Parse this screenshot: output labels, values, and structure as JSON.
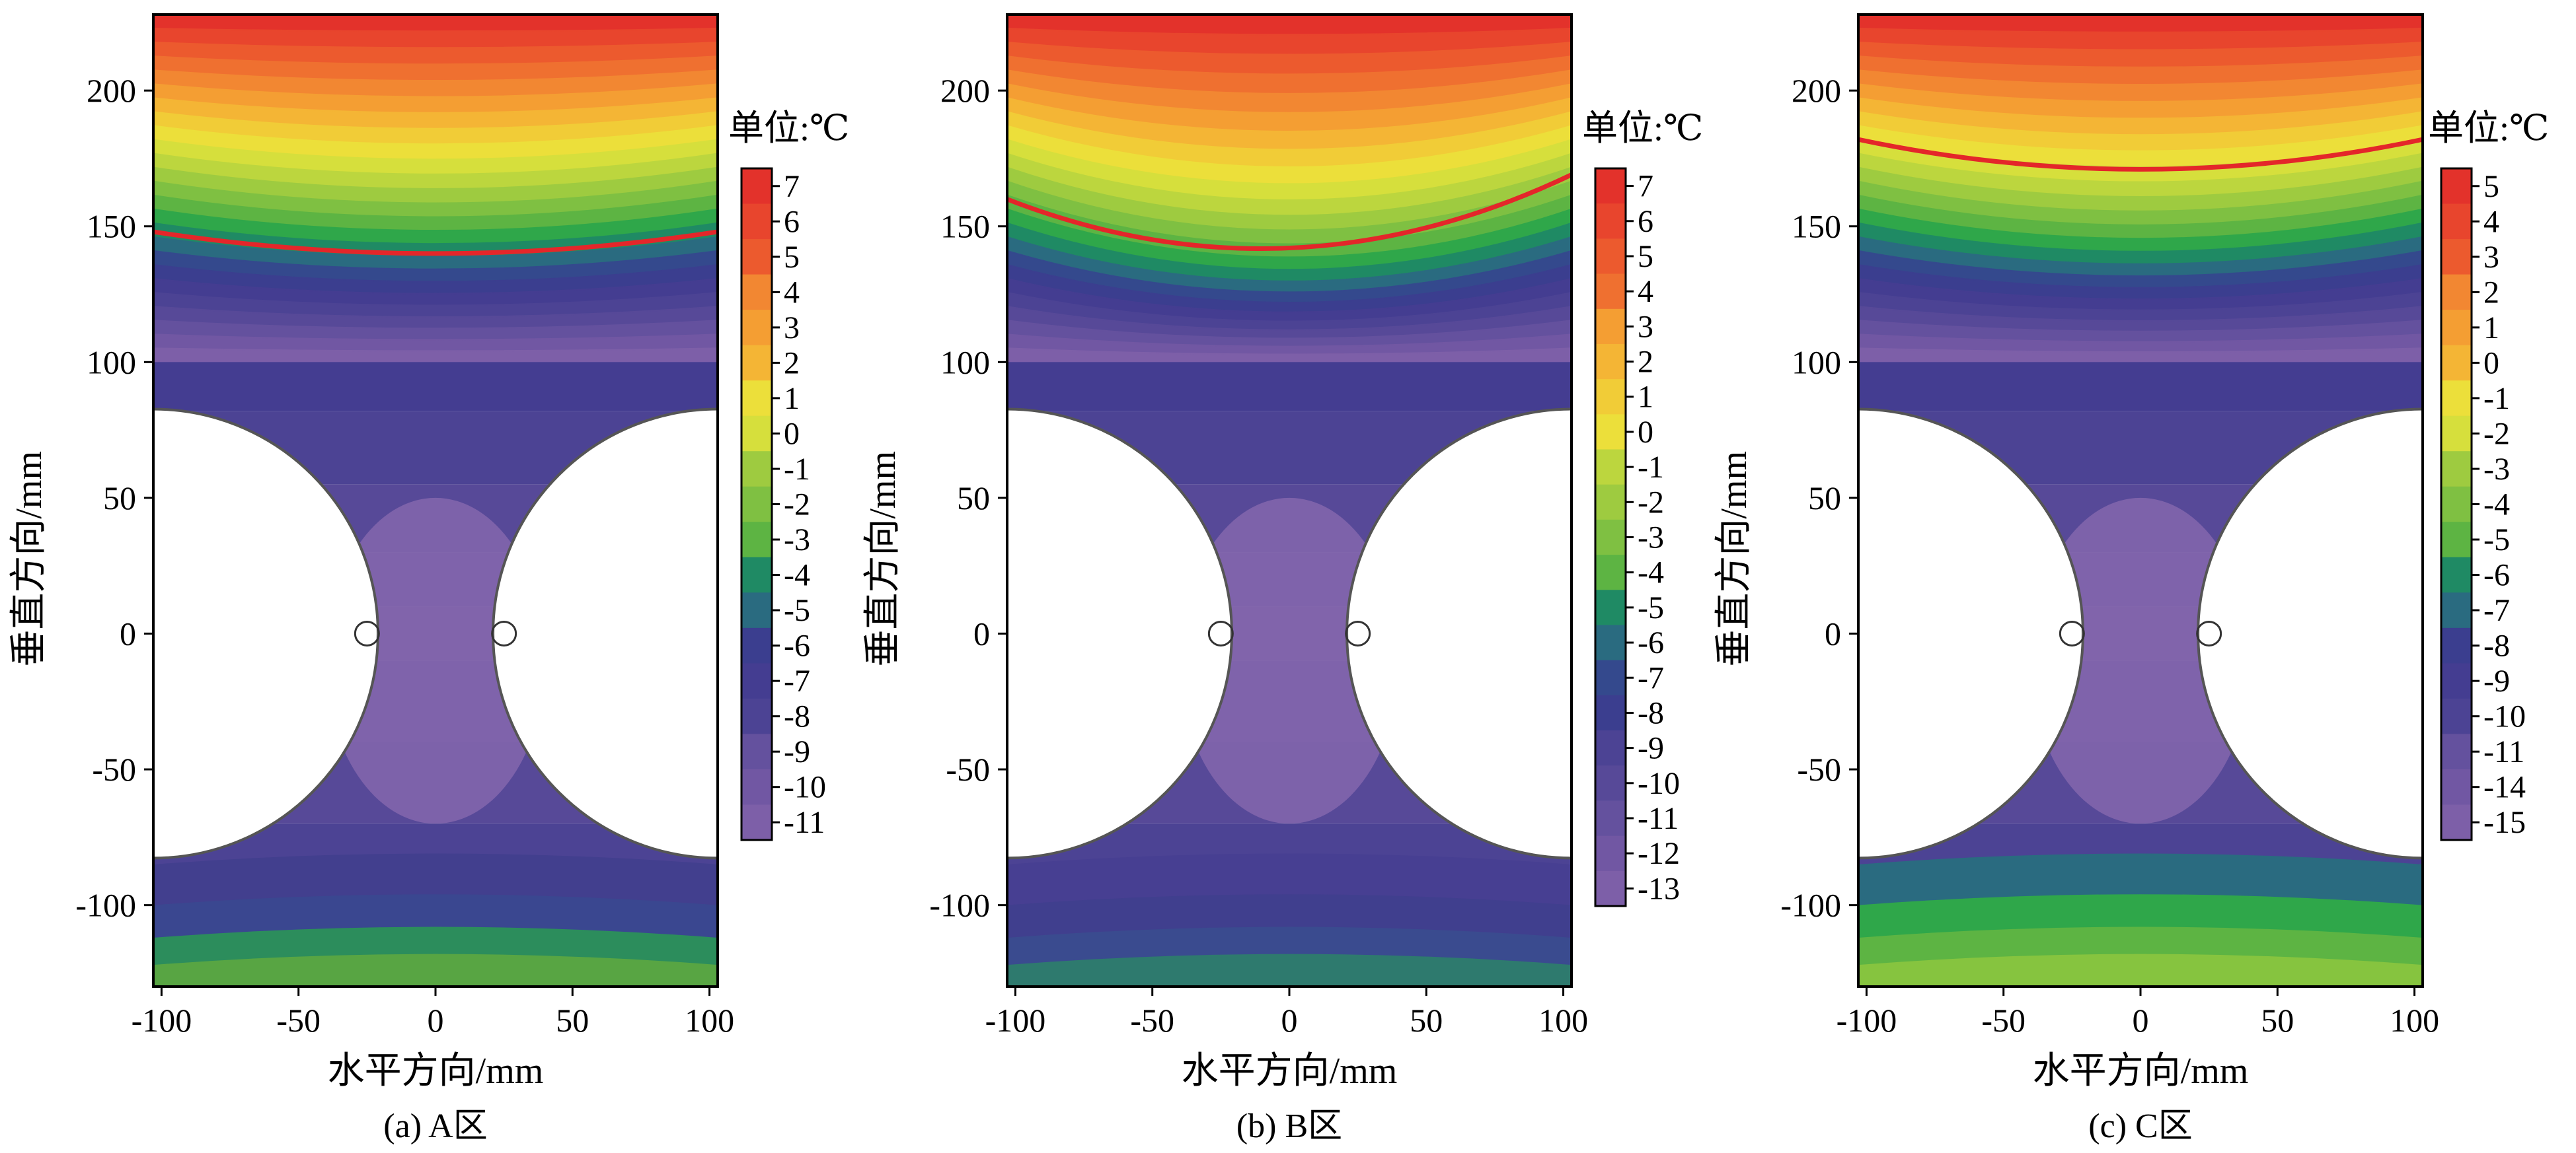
{
  "chart_data": [
    {
      "type": "heatmap",
      "caption": "(a) A区",
      "xlabel": "水平方向/mm",
      "ylabel": "垂直方向/mm",
      "xlim": [
        -103,
        103
      ],
      "ylim": [
        -130,
        228
      ],
      "xticks": [
        -100,
        -50,
        0,
        50,
        100
      ],
      "yticks": [
        -100,
        -50,
        0,
        50,
        100,
        150,
        200
      ],
      "colorbar_title": "单位:℃",
      "colorbar_levels": [
        7,
        6,
        5,
        4,
        3,
        2,
        1,
        0,
        -1,
        -2,
        -3,
        -4,
        -5,
        -6,
        -7,
        -8,
        -9,
        -10,
        -11
      ],
      "zero_isotherm_y": [
        148,
        140,
        148
      ],
      "pile_circles": [
        {
          "cx": -103,
          "cy": 0,
          "r": 82
        },
        {
          "cx": 103,
          "cy": 0,
          "r": 82
        }
      ],
      "grid": false
    },
    {
      "type": "heatmap",
      "caption": "(b) B区",
      "xlabel": "水平方向/mm",
      "ylabel": "垂直方向/mm",
      "xlim": [
        -103,
        103
      ],
      "ylim": [
        -130,
        228
      ],
      "xticks": [
        -100,
        -50,
        0,
        50,
        100
      ],
      "yticks": [
        -100,
        -50,
        0,
        50,
        100,
        150,
        200
      ],
      "colorbar_title": "单位:℃",
      "colorbar_levels": [
        7,
        6,
        5,
        4,
        3,
        2,
        1,
        0,
        -1,
        -2,
        -3,
        -4,
        -5,
        -6,
        -7,
        -8,
        -9,
        -10,
        -11,
        -12,
        -13
      ],
      "zero_isotherm_y": [
        160,
        142,
        169
      ],
      "pile_circles": [
        {
          "cx": -103,
          "cy": 0,
          "r": 82
        },
        {
          "cx": 103,
          "cy": 0,
          "r": 82
        }
      ],
      "grid": false
    },
    {
      "type": "heatmap",
      "caption": "(c) C区",
      "xlabel": "水平方向/mm",
      "ylabel": "垂直方向/mm",
      "xlim": [
        -103,
        103
      ],
      "ylim": [
        -130,
        228
      ],
      "xticks": [
        -100,
        -50,
        0,
        50,
        100
      ],
      "yticks": [
        -100,
        -50,
        0,
        50,
        100,
        150,
        200
      ],
      "colorbar_title": "单位:℃",
      "colorbar_levels": [
        5,
        4,
        3,
        2,
        1,
        0,
        -1,
        -2,
        -3,
        -4,
        -5,
        -6,
        -7,
        -8,
        -9,
        -10,
        -11,
        -14,
        -15
      ],
      "zero_isotherm_y": [
        182,
        171,
        182
      ],
      "pile_circles": [
        {
          "cx": -103,
          "cy": 0,
          "r": 82
        },
        {
          "cx": 103,
          "cy": 0,
          "r": 82
        }
      ],
      "grid": false
    }
  ],
  "colors": {
    "palette_warm_to_cold": [
      "#e3322b",
      "#e8452d",
      "#ec5a2e",
      "#ef7030",
      "#f28732",
      "#f49e33",
      "#f4b535",
      "#f1cc37",
      "#ecdf3a",
      "#d6df3c",
      "#bcd63e",
      "#9ecb40",
      "#7fc042",
      "#5db443",
      "#2fa74a",
      "#1f8a64",
      "#2a6b80",
      "#34498d",
      "#3b3e8f",
      "#443d91",
      "#4c4394",
      "#574998",
      "#64519e",
      "#7157a3",
      "#7d5fa8"
    ],
    "zero_isotherm": "#e4262a",
    "pile_fill": "#ffffff",
    "pile_outline": "#555555"
  }
}
